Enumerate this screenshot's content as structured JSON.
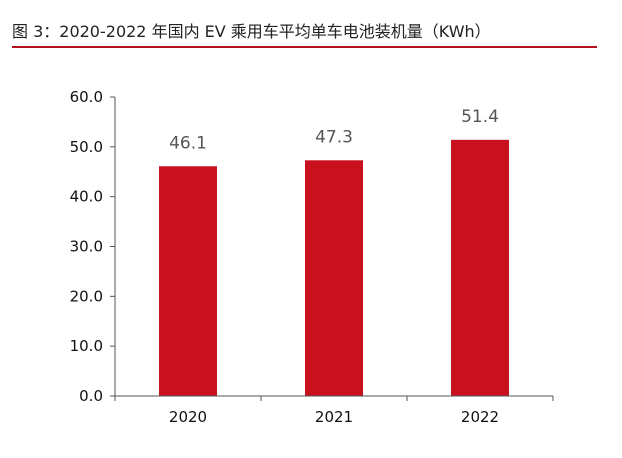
{
  "figure": {
    "title": "图 3：2020-2022 年国内 EV 乘用车平均单车电池装机量（KWh）"
  },
  "chart_data": {
    "type": "bar",
    "title": "图 3：2020-2022 年国内 EV 乘用车平均单车电池装机量（KWh）",
    "categories": [
      "2020",
      "2021",
      "2022"
    ],
    "values": [
      46.1,
      47.3,
      51.4
    ],
    "data_labels": [
      "46.1",
      "47.3",
      "51.4"
    ],
    "yticks": [
      "0.0",
      "10.0",
      "20.0",
      "30.0",
      "40.0",
      "50.0",
      "60.0"
    ],
    "ylim": [
      0,
      60
    ],
    "xlabel": "",
    "ylabel": "",
    "grid": false,
    "legend": "none",
    "bar_color": "#c8101e",
    "title_rule_color": "#b5121b"
  }
}
